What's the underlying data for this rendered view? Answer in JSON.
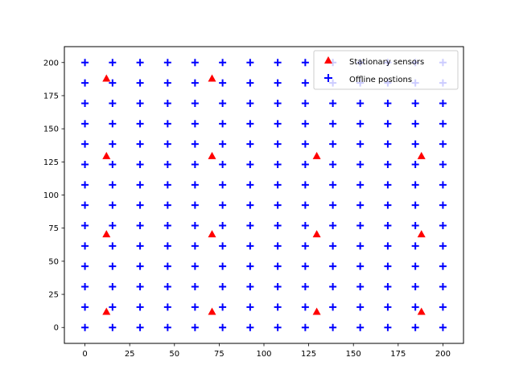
{
  "chart_data": {
    "type": "scatter",
    "title": "",
    "xlabel": "",
    "ylabel": "",
    "xlim": [
      -11.5,
      211.5
    ],
    "ylim": [
      -12,
      212
    ],
    "xticks": [
      0,
      25,
      50,
      75,
      100,
      125,
      150,
      175,
      200
    ],
    "yticks": [
      0,
      25,
      50,
      75,
      100,
      125,
      150,
      175,
      200
    ],
    "grid": false,
    "legend_position": "upper-right",
    "series": [
      {
        "name": "Stationary sensors",
        "marker": "triangle",
        "color": "#ff0000",
        "points": [
          [
            12,
            12
          ],
          [
            71,
            12
          ],
          [
            129.5,
            12
          ],
          [
            188,
            12
          ],
          [
            12,
            70.5
          ],
          [
            71,
            70.5
          ],
          [
            129.5,
            70.5
          ],
          [
            188,
            70.5
          ],
          [
            12,
            129.5
          ],
          [
            71,
            129.5
          ],
          [
            129.5,
            129.5
          ],
          [
            188,
            129.5
          ],
          [
            12,
            188
          ],
          [
            71,
            188
          ]
        ]
      },
      {
        "name": "Offline postions",
        "marker": "plus",
        "color": "#0000ff",
        "x_grid": [
          0,
          15.4,
          30.8,
          46.2,
          61.5,
          76.9,
          92.3,
          107.7,
          123.1,
          138.5,
          153.8,
          169.2,
          184.6,
          200
        ],
        "y_grid": [
          0,
          15.4,
          30.8,
          46.2,
          61.5,
          76.9,
          92.3,
          107.7,
          123.1,
          138.5,
          153.8,
          169.2,
          184.6,
          200
        ]
      }
    ]
  }
}
